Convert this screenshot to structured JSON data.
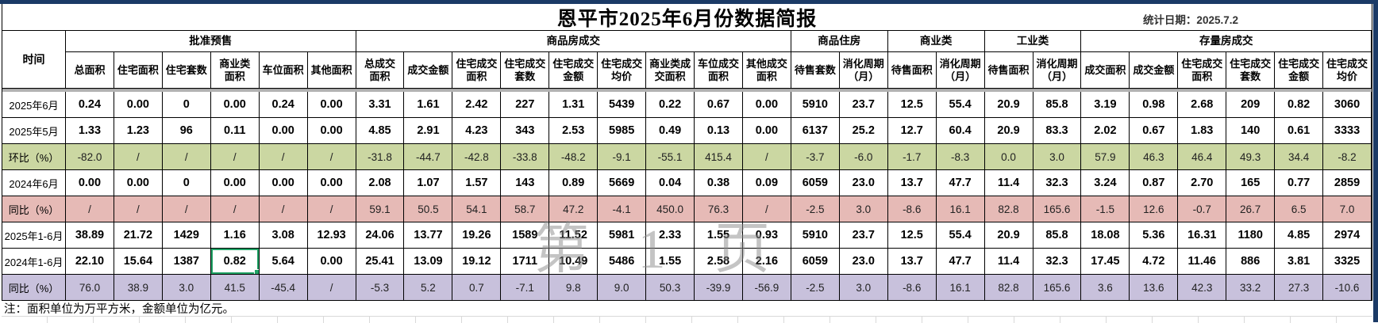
{
  "title": "恩平市2025年6月份数据简报",
  "stat_date": "统计日期：2025.7.2",
  "note": "注：面积单位为万平方米，金额单位为亿元。",
  "watermark": "第 1 页",
  "colors": {
    "row_green": "#cbd7a2",
    "row_pink": "#e6bab6",
    "row_purple": "#c8c1dc",
    "selection_green": "#21a366",
    "page_border_blue": "#1b3a66"
  },
  "table": {
    "time_header": "时间",
    "groups": [
      {
        "label": "批准预售",
        "cols": [
          "总面积",
          "住宅面积",
          "住宅套数",
          "商业类\n面积",
          "车位面积",
          "其他面积"
        ]
      },
      {
        "label": "商品房成交",
        "cols": [
          "总成交\n面积",
          "成交金额",
          "住宅成交\n面积",
          "住宅成交\n套数",
          "住宅成交\n金额",
          "住宅成交\n均价",
          "商业类成\n交面积",
          "车位成交\n面积",
          "其他成交\n面积"
        ]
      },
      {
        "label": "商品住房",
        "cols": [
          "待售套数",
          "消化周期\n（月）"
        ]
      },
      {
        "label": "商业类",
        "cols": [
          "待售面积",
          "消化周期\n（月）"
        ]
      },
      {
        "label": "工业类",
        "cols": [
          "待售面积",
          "消化周期\n（月）"
        ]
      },
      {
        "label": "存量房成交",
        "cols": [
          "成交面积",
          "成交金额",
          "住宅成交\n面积",
          "住宅成交\n套数",
          "住宅成交\n金额",
          "住宅成交\n均价"
        ]
      }
    ],
    "selected_cell": {
      "row": 6,
      "col": 3
    },
    "rows": [
      {
        "label": "2025年6月",
        "style": "plain",
        "values": [
          "0.24",
          "0.00",
          "0",
          "0.00",
          "0.24",
          "0.00",
          "3.31",
          "1.61",
          "2.42",
          "227",
          "1.31",
          "5439",
          "0.22",
          "0.67",
          "0.00",
          "5910",
          "23.7",
          "12.5",
          "55.4",
          "20.9",
          "85.8",
          "3.19",
          "0.98",
          "2.68",
          "209",
          "0.82",
          "3060"
        ]
      },
      {
        "label": "2025年5月",
        "style": "plain",
        "values": [
          "1.33",
          "1.23",
          "96",
          "0.11",
          "0.00",
          "0.00",
          "4.85",
          "2.91",
          "4.23",
          "343",
          "2.53",
          "5985",
          "0.49",
          "0.13",
          "0.00",
          "6137",
          "25.2",
          "12.7",
          "60.4",
          "20.9",
          "83.3",
          "2.02",
          "0.67",
          "1.83",
          "140",
          "0.61",
          "3333"
        ]
      },
      {
        "label": "环比（%）",
        "style": "green",
        "values": [
          "-82.0",
          "/",
          "/",
          "/",
          "/",
          "/",
          "-31.8",
          "-44.7",
          "-42.8",
          "-33.8",
          "-48.2",
          "-9.1",
          "-55.1",
          "415.4",
          "/",
          "-3.7",
          "-6.0",
          "-1.7",
          "-8.3",
          "0.0",
          "3.0",
          "57.9",
          "46.3",
          "46.4",
          "49.3",
          "34.4",
          "-8.2"
        ]
      },
      {
        "label": "2024年6月",
        "style": "plain",
        "values": [
          "0.00",
          "0.00",
          "0",
          "0.00",
          "0.00",
          "0.00",
          "2.08",
          "1.07",
          "1.57",
          "143",
          "0.89",
          "5669",
          "0.04",
          "0.38",
          "0.09",
          "6059",
          "23.0",
          "13.7",
          "47.7",
          "11.4",
          "32.3",
          "3.24",
          "0.87",
          "2.70",
          "165",
          "0.77",
          "2859"
        ]
      },
      {
        "label": "同比（%）",
        "style": "pink",
        "values": [
          "/",
          "/",
          "/",
          "/",
          "/",
          "/",
          "59.1",
          "50.5",
          "54.1",
          "58.7",
          "47.2",
          "-4.1",
          "450.0",
          "76.3",
          "/",
          "-2.5",
          "3.0",
          "-8.6",
          "16.1",
          "82.8",
          "165.6",
          "-1.5",
          "12.6",
          "-0.7",
          "26.7",
          "6.5",
          "7.0"
        ]
      },
      {
        "label": "2025年1-6月",
        "style": "plain",
        "values": [
          "38.89",
          "21.72",
          "1429",
          "1.16",
          "3.08",
          "12.93",
          "24.06",
          "13.77",
          "19.26",
          "1589",
          "11.52",
          "5981",
          "2.33",
          "1.55",
          "0.93",
          "5910",
          "23.7",
          "12.5",
          "55.4",
          "20.9",
          "85.8",
          "18.08",
          "5.36",
          "16.31",
          "1180",
          "4.85",
          "2974"
        ]
      },
      {
        "label": "2024年1-6月",
        "style": "plain",
        "values": [
          "22.10",
          "15.64",
          "1387",
          "0.82",
          "5.64",
          "0.00",
          "25.41",
          "13.09",
          "19.12",
          "1711",
          "10.49",
          "5486",
          "1.55",
          "2.58",
          "2.16",
          "6059",
          "23.0",
          "13.7",
          "47.7",
          "11.4",
          "32.3",
          "17.45",
          "4.72",
          "11.46",
          "886",
          "3.81",
          "3325"
        ]
      },
      {
        "label": "同比（%）",
        "style": "purple",
        "values": [
          "76.0",
          "38.9",
          "3.0",
          "41.5",
          "-45.4",
          "/",
          "-5.3",
          "5.2",
          "0.7",
          "-7.1",
          "9.8",
          "9.0",
          "50.3",
          "-39.9",
          "-56.9",
          "-2.5",
          "3.0",
          "-8.6",
          "16.1",
          "82.8",
          "165.6",
          "3.6",
          "13.6",
          "42.3",
          "33.2",
          "27.3",
          "-10.6"
        ]
      }
    ]
  }
}
